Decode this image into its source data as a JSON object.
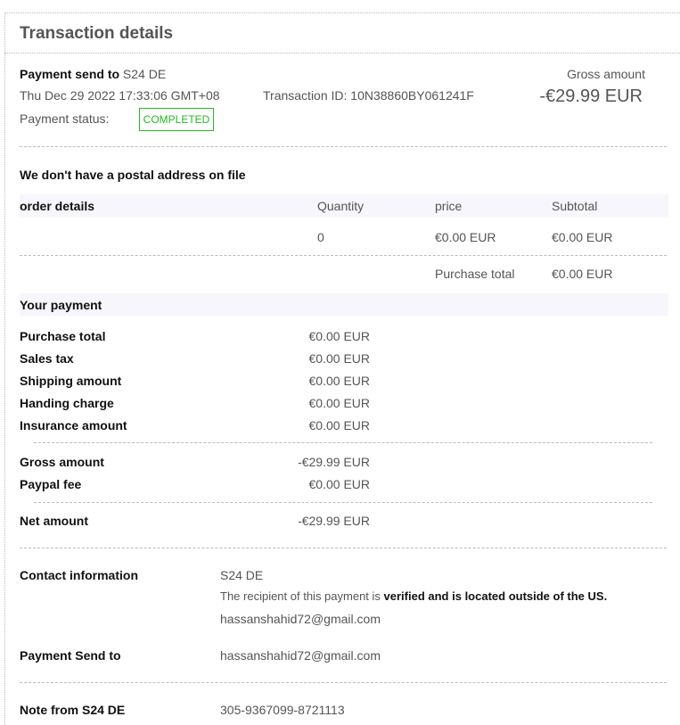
{
  "title": "Transaction details",
  "summary": {
    "send_to_label": "Payment send to",
    "send_to_value": "S24 DE",
    "date": "Thu Dec 29 2022 17:33:06 GMT+08",
    "transaction_id": "Transaction ID: 10N38860BY061241F",
    "status_label": "Payment status:",
    "status": "COMPLETED",
    "status_color": "#22bb22",
    "gross_label": "Gross amount",
    "gross_value": "-€29.99 EUR"
  },
  "postal": "We don't have a postal address on file",
  "order": {
    "headers": [
      "order details",
      "Quantity",
      "price",
      "Subtotal"
    ],
    "row": {
      "quantity": "0",
      "price": "€0.00 EUR",
      "subtotal": "€0.00 EUR"
    },
    "total_label": "Purchase total",
    "total_value": "€0.00 EUR"
  },
  "payment": {
    "title": "Your payment",
    "rows": [
      {
        "label": "Purchase total",
        "value": "€0.00 EUR"
      },
      {
        "label": "Sales tax",
        "value": "€0.00 EUR"
      },
      {
        "label": "Shipping amount",
        "value": "€0.00 EUR"
      },
      {
        "label": "Handing charge",
        "value": "€0.00 EUR"
      },
      {
        "label": "Insurance amount",
        "value": "€0.00 EUR"
      },
      {
        "label": "Gross amount",
        "value": "-€29.99 EUR"
      },
      {
        "label": "Paypal fee",
        "value": "€0.00 EUR"
      },
      {
        "label": "Net amount",
        "value": "-€29.99 EUR"
      }
    ]
  },
  "contact": {
    "label": "Contact information",
    "name": "S24 DE",
    "verified_prefix": "The recipient of this payment is ",
    "verified_bold": "verified and is located outside of the US.",
    "email": "hassanshahid72@gmail.com"
  },
  "send_to": {
    "label": "Payment Send to",
    "value": "hassanshahid72@gmail.com"
  },
  "note": {
    "label": "Note from S24 DE",
    "value": "305-9367099-8721113"
  }
}
